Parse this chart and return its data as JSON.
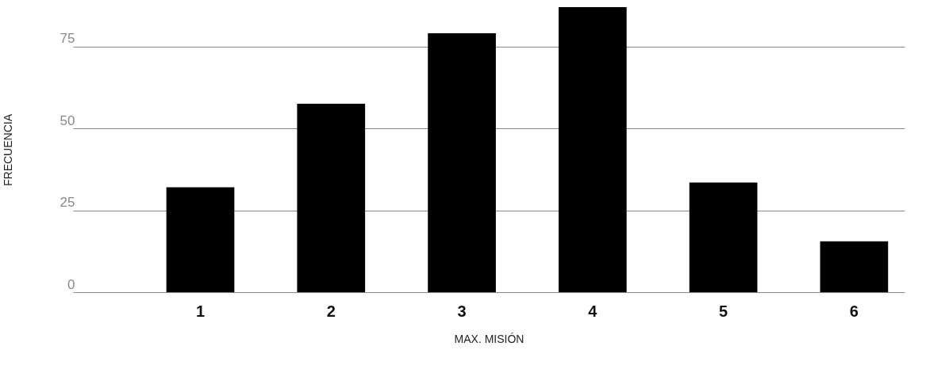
{
  "chart_data": {
    "type": "bar",
    "xlabel": "MAX. MISIÓN",
    "ylabel": "FRECUENCIA",
    "categories": [
      "1",
      "2",
      "3",
      "4",
      "5",
      "6"
    ],
    "values": [
      32,
      57.5,
      79,
      87,
      33.5,
      15.5
    ],
    "color": "#000000",
    "ylim": [
      0,
      87
    ],
    "yticks": [
      0,
      25,
      50,
      75
    ],
    "grid": "y"
  }
}
